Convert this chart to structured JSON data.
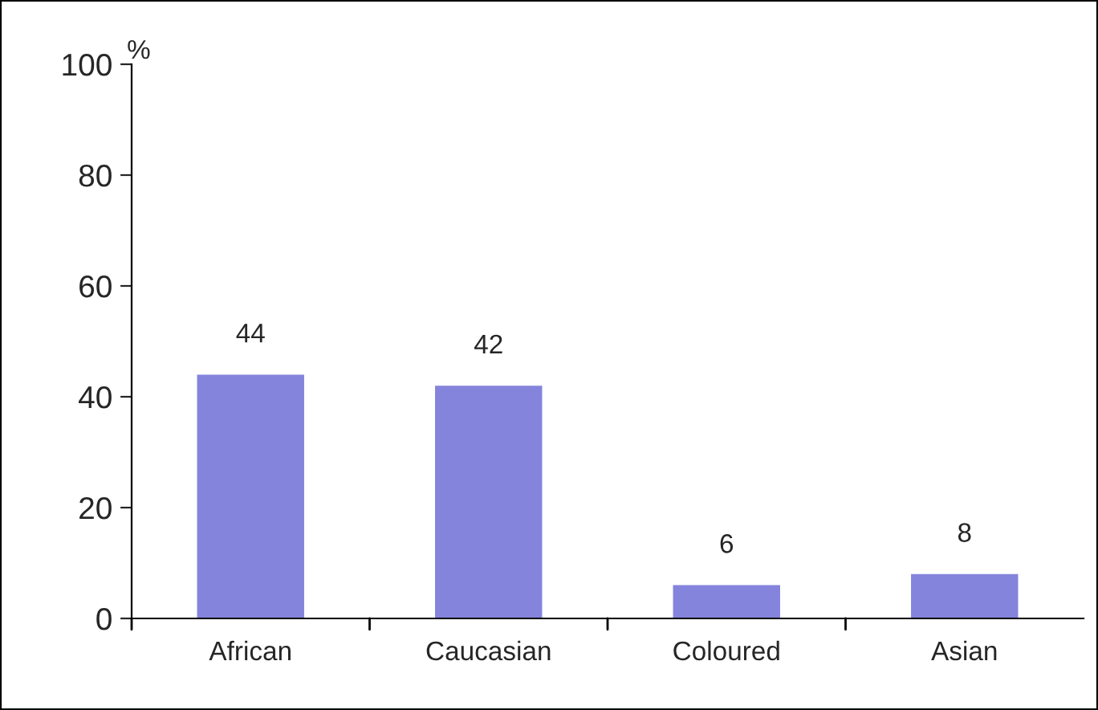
{
  "chart_data": {
    "type": "bar",
    "ylabel": "%",
    "categories": [
      "African",
      "Caucasian",
      "Coloured",
      "Asian"
    ],
    "values": [
      44,
      42,
      6,
      8
    ],
    "color": "#8484dc",
    "ylim": [
      0,
      100
    ],
    "yticks": [
      0,
      20,
      40,
      60,
      80,
      100
    ],
    "data_labels": true,
    "grid": false,
    "legend": false
  }
}
